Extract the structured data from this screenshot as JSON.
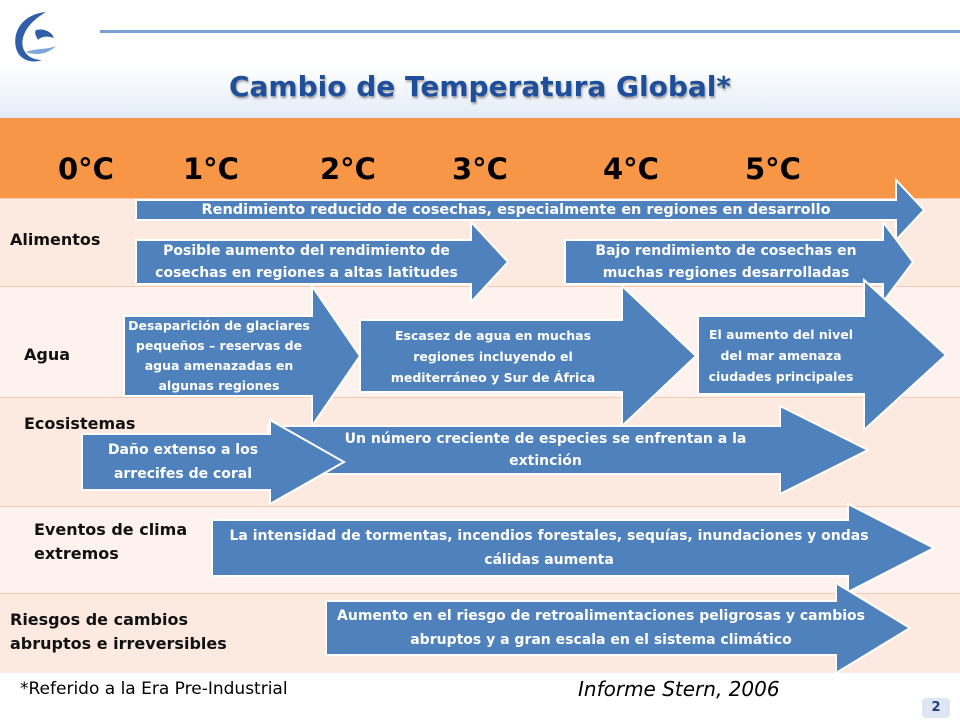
{
  "title": "Cambio de Temperatura Global*",
  "temperatures": [
    "0°C",
    "1°C",
    "2°C",
    "3°C",
    "4°C",
    "5°C"
  ],
  "rows": {
    "alimentos": "Alimentos",
    "agua": "Agua",
    "ecosistemas": "Ecosistemas",
    "eventos": "Eventos de clima extremos",
    "riesgos": "Riesgos de cambios abruptos e irreversibles"
  },
  "arrows": {
    "a1": "Rendimiento reducido de cosechas, especialmente en regiones en desarrollo",
    "a2": "Posible aumento del rendimiento de cosechas en regiones a altas latitudes",
    "a3": "Bajo rendimiento de cosechas en muchas regiones desarrolladas",
    "w1": "Desaparición de glaciares pequeños – reservas de agua amenazadas en algunas regiones",
    "w2": "Escasez de agua en muchas regiones incluyendo el mediterráneo y Sur de África",
    "w3": "El aumento del nivel del mar amenaza ciudades principales",
    "e1": "Daño extenso a los arrecifes de coral",
    "e2": "Un número creciente de especies se enfrentan a la extinción",
    "x1": "La intensidad de tormentas, incendios forestales, sequías, inundaciones y ondas cálidas aumenta",
    "r1": "Aumento en el riesgo de retroalimentaciones peligrosas y cambios abruptos y a gran escala en el sistema climático"
  },
  "footnote": "*Referido a la Era Pre-Industrial",
  "source": "Informe Stern, 2006",
  "page_number": "2",
  "colors": {
    "header": "#f79646",
    "arrow": "#4f81bd",
    "title": "#1f4e9a",
    "band": "#fce9e0"
  }
}
